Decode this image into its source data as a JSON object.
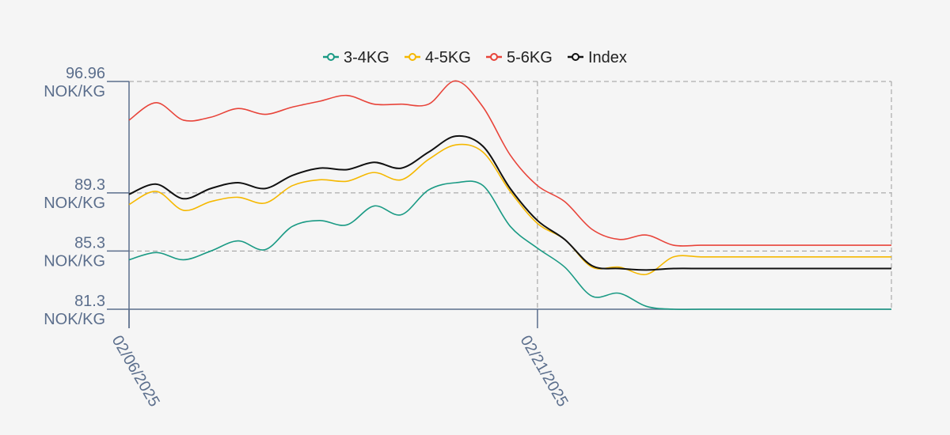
{
  "chart_data": {
    "type": "line",
    "x_axis": {
      "type": "date",
      "range": [
        "2025-02-06",
        "2025-03-06"
      ],
      "ticks": [
        {
          "date": "2025-02-06",
          "label": "02/06/2025"
        },
        {
          "date": "2025-02-21",
          "label": "02/21/2025"
        }
      ]
    },
    "y_axis": {
      "range": [
        81.3,
        96.96
      ],
      "ticks": [
        {
          "value": 96.96,
          "lines": [
            "96.96",
            "NOK/KG"
          ]
        },
        {
          "value": 89.3,
          "lines": [
            "89.3",
            "NOK/KG"
          ]
        },
        {
          "value": 85.3,
          "lines": [
            "85.3",
            "NOK/KG"
          ]
        },
        {
          "value": 81.3,
          "lines": [
            "81.3",
            "NOK/KG"
          ]
        }
      ]
    },
    "grid": true,
    "legend_position": "top-center",
    "series": [
      {
        "name": "3-4KG",
        "color": "#1a9a84",
        "x": [
          "2025-02-06",
          "2025-02-07",
          "2025-02-08",
          "2025-02-09",
          "2025-02-10",
          "2025-02-11",
          "2025-02-12",
          "2025-02-13",
          "2025-02-14",
          "2025-02-15",
          "2025-02-16",
          "2025-02-17",
          "2025-02-18",
          "2025-02-19",
          "2025-02-20",
          "2025-02-21",
          "2025-02-22",
          "2025-02-23",
          "2025-02-24",
          "2025-02-25",
          "2025-02-26",
          "2025-02-27",
          "2025-02-28",
          "2025-03-01",
          "2025-03-02",
          "2025-03-03",
          "2025-03-04",
          "2025-03-05",
          "2025-03-06"
        ],
        "values": [
          84.7,
          85.2,
          84.7,
          85.3,
          86.0,
          85.4,
          87.0,
          87.4,
          87.1,
          88.4,
          87.8,
          89.5,
          90.0,
          89.8,
          87.0,
          85.5,
          84.2,
          82.2,
          82.4,
          81.5,
          81.3,
          81.3,
          81.3,
          81.3,
          81.3,
          81.3,
          81.3,
          81.3,
          81.3
        ]
      },
      {
        "name": "4-5KG",
        "color": "#f5b800",
        "x": [
          "2025-02-06",
          "2025-02-07",
          "2025-02-08",
          "2025-02-09",
          "2025-02-10",
          "2025-02-11",
          "2025-02-12",
          "2025-02-13",
          "2025-02-14",
          "2025-02-15",
          "2025-02-16",
          "2025-02-17",
          "2025-02-18",
          "2025-02-19",
          "2025-02-20",
          "2025-02-21",
          "2025-02-22",
          "2025-02-23",
          "2025-02-24",
          "2025-02-25",
          "2025-02-26",
          "2025-02-27",
          "2025-02-28",
          "2025-03-01",
          "2025-03-02",
          "2025-03-03",
          "2025-03-04",
          "2025-03-05",
          "2025-03-06"
        ],
        "values": [
          88.5,
          89.4,
          88.1,
          88.7,
          89.0,
          88.6,
          89.8,
          90.2,
          90.1,
          90.7,
          90.2,
          91.6,
          92.6,
          92.1,
          89.4,
          87.2,
          86.1,
          84.2,
          84.2,
          83.7,
          84.9,
          84.9,
          84.9,
          84.9,
          84.9,
          84.9,
          84.9,
          84.9,
          84.9
        ]
      },
      {
        "name": "5-6KG",
        "color": "#e8443a",
        "x": [
          "2025-02-06",
          "2025-02-07",
          "2025-02-08",
          "2025-02-09",
          "2025-02-10",
          "2025-02-11",
          "2025-02-12",
          "2025-02-13",
          "2025-02-14",
          "2025-02-15",
          "2025-02-16",
          "2025-02-17",
          "2025-02-18",
          "2025-02-19",
          "2025-02-20",
          "2025-02-21",
          "2025-02-22",
          "2025-02-23",
          "2025-02-24",
          "2025-02-25",
          "2025-02-26",
          "2025-02-27",
          "2025-02-28",
          "2025-03-01",
          "2025-03-02",
          "2025-03-03",
          "2025-03-04",
          "2025-03-05",
          "2025-03-06"
        ],
        "values": [
          94.3,
          95.5,
          94.3,
          94.5,
          95.1,
          94.7,
          95.2,
          95.6,
          96.0,
          95.4,
          95.4,
          95.4,
          97.0,
          95.2,
          91.9,
          89.8,
          88.7,
          86.8,
          86.1,
          86.4,
          85.7,
          85.7,
          85.7,
          85.7,
          85.7,
          85.7,
          85.7,
          85.7,
          85.7
        ]
      },
      {
        "name": "Index",
        "color": "#111111",
        "x": [
          "2025-02-06",
          "2025-02-07",
          "2025-02-08",
          "2025-02-09",
          "2025-02-10",
          "2025-02-11",
          "2025-02-12",
          "2025-02-13",
          "2025-02-14",
          "2025-02-15",
          "2025-02-16",
          "2025-02-17",
          "2025-02-18",
          "2025-02-19",
          "2025-02-20",
          "2025-02-21",
          "2025-02-22",
          "2025-02-23",
          "2025-02-24",
          "2025-02-25",
          "2025-02-26",
          "2025-02-27",
          "2025-02-28",
          "2025-03-01",
          "2025-03-02",
          "2025-03-03",
          "2025-03-04",
          "2025-03-05",
          "2025-03-06"
        ],
        "values": [
          89.2,
          89.9,
          88.9,
          89.6,
          90.0,
          89.6,
          90.5,
          91.0,
          90.9,
          91.4,
          91.0,
          92.1,
          93.2,
          92.5,
          89.6,
          87.4,
          86.1,
          84.3,
          84.1,
          84.0,
          84.1,
          84.1,
          84.1,
          84.1,
          84.1,
          84.1,
          84.1,
          84.1,
          84.1
        ]
      }
    ]
  }
}
